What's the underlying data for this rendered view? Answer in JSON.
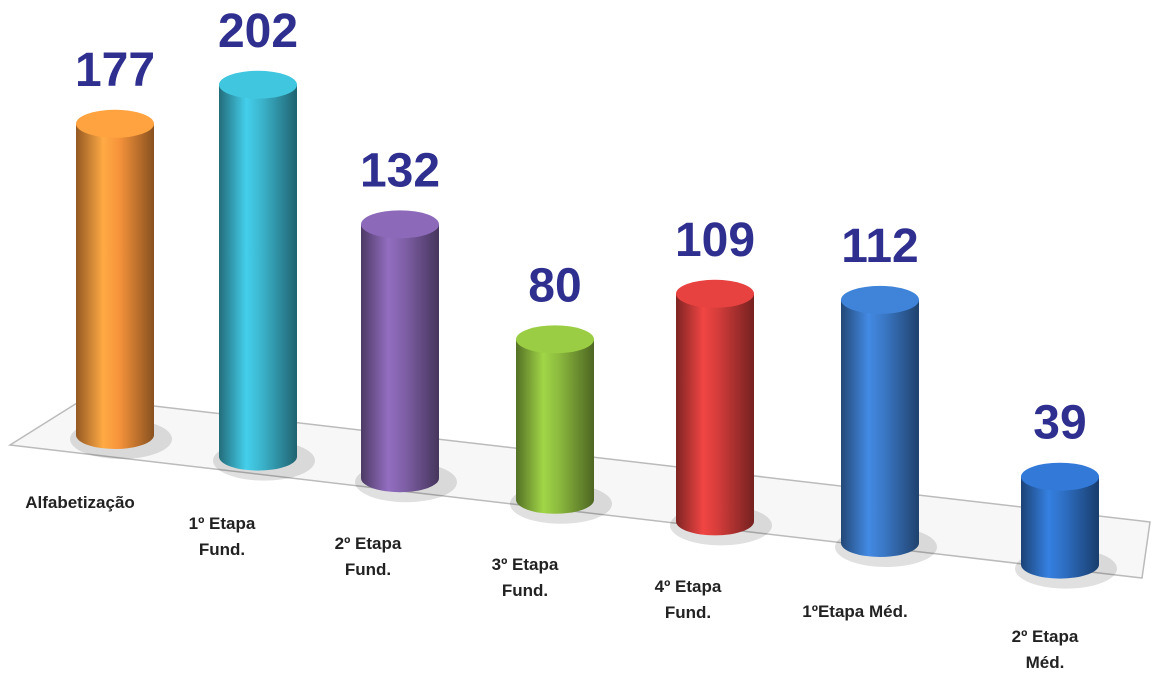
{
  "chart_data": {
    "type": "bar",
    "categories": [
      "Alfabetização",
      "1º Etapa Fund.",
      "2º Etapa Fund.",
      "3º Etapa Fund.",
      "4º Etapa Fund.",
      "1ºEtapa Méd.",
      "2º Etapa Méd."
    ],
    "values": [
      177,
      202,
      132,
      80,
      109,
      112,
      39
    ],
    "colors": [
      "#f7943b",
      "#3bb4cc",
      "#8060a8",
      "#8cba3e",
      "#d23c3a",
      "#3a78c6",
      "#2e6fc4"
    ]
  }
}
